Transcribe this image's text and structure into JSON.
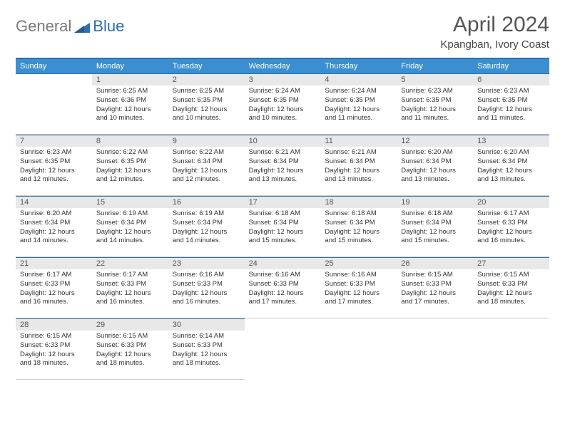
{
  "logo": {
    "text1": "General",
    "text2": "Blue"
  },
  "title": "April 2024",
  "subtitle": "Kpangban, Ivory Coast",
  "weekdays": [
    "Sunday",
    "Monday",
    "Tuesday",
    "Wednesday",
    "Thursday",
    "Friday",
    "Saturday"
  ],
  "colors": {
    "header_bar": "#3b8fd0",
    "accent_line": "#2f6fab",
    "daynum_bg": "#e8e8e8"
  },
  "first_weekday_index": 1,
  "days": [
    {
      "n": 1,
      "sunrise": "6:25 AM",
      "sunset": "6:36 PM",
      "daylight": "12 hours and 10 minutes."
    },
    {
      "n": 2,
      "sunrise": "6:25 AM",
      "sunset": "6:35 PM",
      "daylight": "12 hours and 10 minutes."
    },
    {
      "n": 3,
      "sunrise": "6:24 AM",
      "sunset": "6:35 PM",
      "daylight": "12 hours and 10 minutes."
    },
    {
      "n": 4,
      "sunrise": "6:24 AM",
      "sunset": "6:35 PM",
      "daylight": "12 hours and 11 minutes."
    },
    {
      "n": 5,
      "sunrise": "6:23 AM",
      "sunset": "6:35 PM",
      "daylight": "12 hours and 11 minutes."
    },
    {
      "n": 6,
      "sunrise": "6:23 AM",
      "sunset": "6:35 PM",
      "daylight": "12 hours and 11 minutes."
    },
    {
      "n": 7,
      "sunrise": "6:23 AM",
      "sunset": "6:35 PM",
      "daylight": "12 hours and 12 minutes."
    },
    {
      "n": 8,
      "sunrise": "6:22 AM",
      "sunset": "6:35 PM",
      "daylight": "12 hours and 12 minutes."
    },
    {
      "n": 9,
      "sunrise": "6:22 AM",
      "sunset": "6:34 PM",
      "daylight": "12 hours and 12 minutes."
    },
    {
      "n": 10,
      "sunrise": "6:21 AM",
      "sunset": "6:34 PM",
      "daylight": "12 hours and 13 minutes."
    },
    {
      "n": 11,
      "sunrise": "6:21 AM",
      "sunset": "6:34 PM",
      "daylight": "12 hours and 13 minutes."
    },
    {
      "n": 12,
      "sunrise": "6:20 AM",
      "sunset": "6:34 PM",
      "daylight": "12 hours and 13 minutes."
    },
    {
      "n": 13,
      "sunrise": "6:20 AM",
      "sunset": "6:34 PM",
      "daylight": "12 hours and 13 minutes."
    },
    {
      "n": 14,
      "sunrise": "6:20 AM",
      "sunset": "6:34 PM",
      "daylight": "12 hours and 14 minutes."
    },
    {
      "n": 15,
      "sunrise": "6:19 AM",
      "sunset": "6:34 PM",
      "daylight": "12 hours and 14 minutes."
    },
    {
      "n": 16,
      "sunrise": "6:19 AM",
      "sunset": "6:34 PM",
      "daylight": "12 hours and 14 minutes."
    },
    {
      "n": 17,
      "sunrise": "6:18 AM",
      "sunset": "6:34 PM",
      "daylight": "12 hours and 15 minutes."
    },
    {
      "n": 18,
      "sunrise": "6:18 AM",
      "sunset": "6:34 PM",
      "daylight": "12 hours and 15 minutes."
    },
    {
      "n": 19,
      "sunrise": "6:18 AM",
      "sunset": "6:34 PM",
      "daylight": "12 hours and 15 minutes."
    },
    {
      "n": 20,
      "sunrise": "6:17 AM",
      "sunset": "6:33 PM",
      "daylight": "12 hours and 16 minutes."
    },
    {
      "n": 21,
      "sunrise": "6:17 AM",
      "sunset": "6:33 PM",
      "daylight": "12 hours and 16 minutes."
    },
    {
      "n": 22,
      "sunrise": "6:17 AM",
      "sunset": "6:33 PM",
      "daylight": "12 hours and 16 minutes."
    },
    {
      "n": 23,
      "sunrise": "6:16 AM",
      "sunset": "6:33 PM",
      "daylight": "12 hours and 16 minutes."
    },
    {
      "n": 24,
      "sunrise": "6:16 AM",
      "sunset": "6:33 PM",
      "daylight": "12 hours and 17 minutes."
    },
    {
      "n": 25,
      "sunrise": "6:16 AM",
      "sunset": "6:33 PM",
      "daylight": "12 hours and 17 minutes."
    },
    {
      "n": 26,
      "sunrise": "6:15 AM",
      "sunset": "6:33 PM",
      "daylight": "12 hours and 17 minutes."
    },
    {
      "n": 27,
      "sunrise": "6:15 AM",
      "sunset": "6:33 PM",
      "daylight": "12 hours and 18 minutes."
    },
    {
      "n": 28,
      "sunrise": "6:15 AM",
      "sunset": "6:33 PM",
      "daylight": "12 hours and 18 minutes."
    },
    {
      "n": 29,
      "sunrise": "6:15 AM",
      "sunset": "6:33 PM",
      "daylight": "12 hours and 18 minutes."
    },
    {
      "n": 30,
      "sunrise": "6:14 AM",
      "sunset": "6:33 PM",
      "daylight": "12 hours and 18 minutes."
    }
  ],
  "labels": {
    "sunrise": "Sunrise:",
    "sunset": "Sunset:",
    "daylight": "Daylight:"
  }
}
